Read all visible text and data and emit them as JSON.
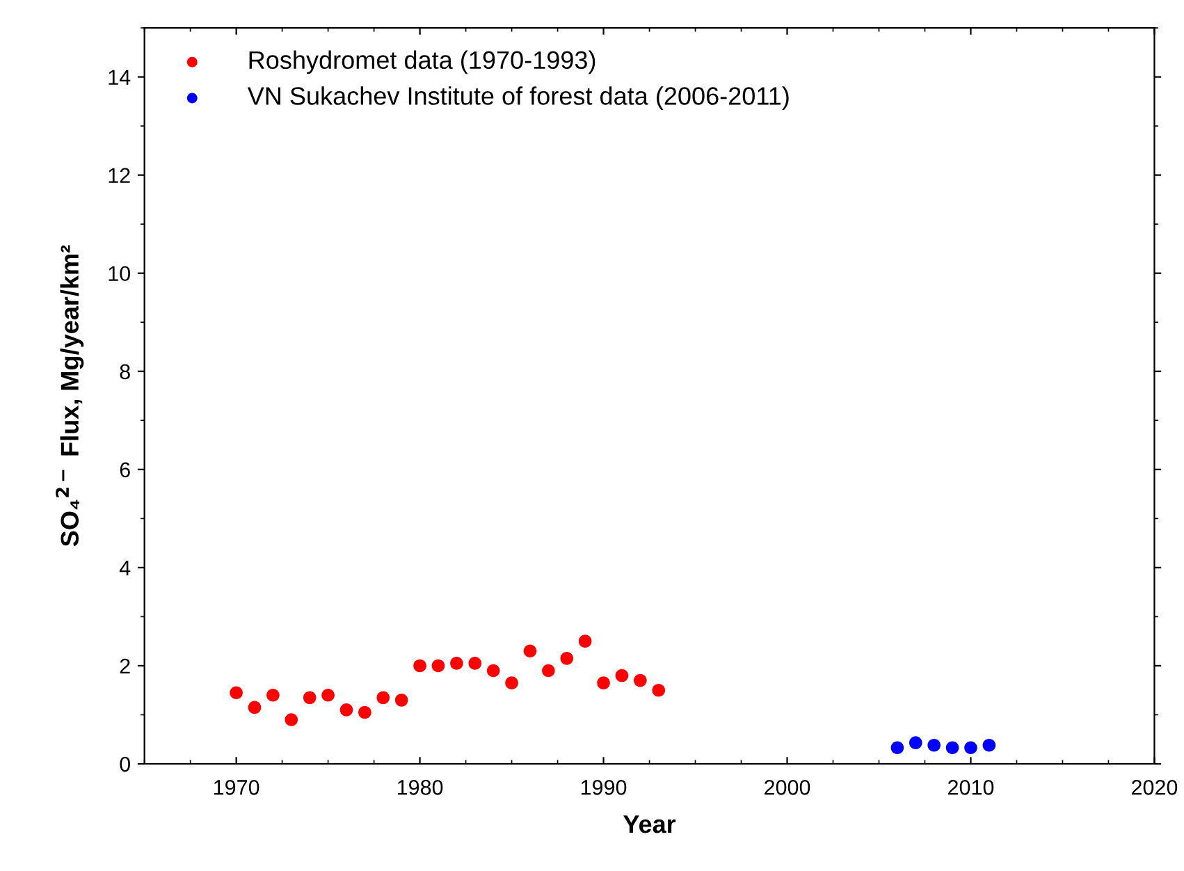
{
  "chart_data": {
    "type": "scatter",
    "xlabel": "Year",
    "ylabel": "SO₄$^{2−}$ Flux, Mg/year/km²",
    "xlim": [
      1965,
      2020
    ],
    "xticks": [
      1970,
      1980,
      1990,
      2000,
      2010,
      2020
    ],
    "ylim": [
      0,
      15
    ],
    "yticks": [
      0,
      2,
      4,
      6,
      8,
      10,
      12,
      14
    ],
    "grid": false,
    "legend": "top left",
    "marker": "circle",
    "series": [
      {
        "name": "Roshydromet data (1970-1993)",
        "color": "#ff0000",
        "x": [
          1970,
          1971,
          1972,
          1973,
          1974,
          1975,
          1976,
          1977,
          1978,
          1979,
          1980,
          1981,
          1982,
          1983,
          1984,
          1985,
          1986,
          1987,
          1988,
          1989,
          1990,
          1991,
          1992,
          1993
        ],
        "values": [
          1.45,
          1.15,
          1.4,
          0.9,
          1.35,
          1.4,
          1.1,
          1.05,
          1.35,
          1.3,
          2.0,
          2.0,
          2.05,
          2.05,
          1.9,
          1.65,
          2.3,
          1.9,
          2.15,
          2.5,
          1.65,
          1.8,
          1.7,
          1.5
        ]
      },
      {
        "name": "VN Sukachev Institute of forest data (2006-2011)",
        "color": "#0000ff",
        "x": [
          2006,
          2007,
          2008,
          2009,
          2010,
          2011
        ],
        "values": [
          0.33,
          0.43,
          0.38,
          0.33,
          0.33,
          0.38
        ]
      }
    ]
  }
}
